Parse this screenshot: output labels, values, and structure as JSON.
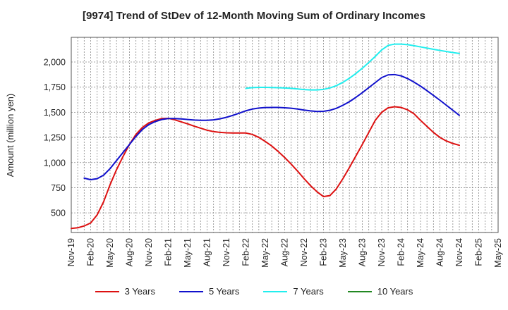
{
  "chart_data": {
    "type": "line",
    "title": "[9974]  Trend of StDev of 12-Month Moving Sum of Ordinary Incomes",
    "xlabel": "",
    "ylabel": "Amount (million yen)",
    "x_ticks": [
      "Nov-19",
      "Feb-20",
      "May-20",
      "Aug-20",
      "Nov-20",
      "Feb-21",
      "May-21",
      "Aug-21",
      "Nov-21",
      "Feb-22",
      "May-22",
      "Aug-22",
      "Nov-22",
      "Feb-23",
      "May-23",
      "Aug-23",
      "Nov-23",
      "Feb-24",
      "May-24",
      "Aug-24",
      "Nov-24",
      "Feb-25",
      "May-25"
    ],
    "y_ticks": [
      500,
      750,
      1000,
      1250,
      1500,
      1750,
      2000
    ],
    "y_tick_labels": [
      "500",
      "750",
      "1,000",
      "1,250",
      "1,500",
      "1,750",
      "2,000"
    ],
    "ylim": [
      305,
      2245
    ],
    "x_range": [
      "Nov-19",
      "May-25"
    ],
    "grid": true,
    "legend_position": "bottom",
    "series": [
      {
        "name": "3 Years",
        "color": "#dd1111",
        "points": [
          [
            "Nov-19",
            345
          ],
          [
            "Dec-19",
            352
          ],
          [
            "Jan-20",
            370
          ],
          [
            "Feb-20",
            400
          ],
          [
            "Mar-20",
            480
          ],
          [
            "Apr-20",
            610
          ],
          [
            "May-20",
            780
          ],
          [
            "Jun-20",
            930
          ],
          [
            "Jul-20",
            1060
          ],
          [
            "Aug-20",
            1180
          ],
          [
            "Sep-20",
            1280
          ],
          [
            "Oct-20",
            1350
          ],
          [
            "Nov-20",
            1395
          ],
          [
            "Dec-20",
            1420
          ],
          [
            "Jan-21",
            1438
          ],
          [
            "Feb-21",
            1440
          ],
          [
            "Mar-21",
            1425
          ],
          [
            "Apr-21",
            1405
          ],
          [
            "May-21",
            1385
          ],
          [
            "Jun-21",
            1362
          ],
          [
            "Jul-21",
            1342
          ],
          [
            "Aug-21",
            1322
          ],
          [
            "Sep-21",
            1308
          ],
          [
            "Oct-21",
            1300
          ],
          [
            "Nov-21",
            1296
          ],
          [
            "Dec-21",
            1294
          ],
          [
            "Jan-22",
            1294
          ],
          [
            "Feb-22",
            1294
          ],
          [
            "Mar-22",
            1280
          ],
          [
            "Apr-22",
            1250
          ],
          [
            "May-22",
            1210
          ],
          [
            "Jun-22",
            1165
          ],
          [
            "Jul-22",
            1110
          ],
          [
            "Aug-22",
            1050
          ],
          [
            "Sep-22",
            985
          ],
          [
            "Oct-22",
            915
          ],
          [
            "Nov-22",
            840
          ],
          [
            "Dec-22",
            770
          ],
          [
            "Jan-23",
            710
          ],
          [
            "Feb-23",
            662
          ],
          [
            "Mar-23",
            672
          ],
          [
            "Apr-23",
            740
          ],
          [
            "May-23",
            840
          ],
          [
            "Jun-23",
            950
          ],
          [
            "Jul-23",
            1065
          ],
          [
            "Aug-23",
            1180
          ],
          [
            "Sep-23",
            1300
          ],
          [
            "Oct-23",
            1420
          ],
          [
            "Nov-23",
            1500
          ],
          [
            "Dec-23",
            1545
          ],
          [
            "Jan-24",
            1555
          ],
          [
            "Feb-24",
            1548
          ],
          [
            "Mar-24",
            1525
          ],
          [
            "Apr-24",
            1485
          ],
          [
            "May-24",
            1420
          ],
          [
            "Jun-24",
            1360
          ],
          [
            "Jul-24",
            1300
          ],
          [
            "Aug-24",
            1250
          ],
          [
            "Sep-24",
            1215
          ],
          [
            "Oct-24",
            1190
          ],
          [
            "Nov-24",
            1172
          ]
        ]
      },
      {
        "name": "5 Years",
        "color": "#1111cc",
        "points": [
          [
            "Jan-20",
            845
          ],
          [
            "Feb-20",
            830
          ],
          [
            "Mar-20",
            840
          ],
          [
            "Apr-20",
            875
          ],
          [
            "May-20",
            940
          ],
          [
            "Jun-20",
            1020
          ],
          [
            "Jul-20",
            1100
          ],
          [
            "Aug-20",
            1180
          ],
          [
            "Sep-20",
            1260
          ],
          [
            "Oct-20",
            1330
          ],
          [
            "Nov-20",
            1378
          ],
          [
            "Dec-20",
            1408
          ],
          [
            "Jan-21",
            1428
          ],
          [
            "Feb-21",
            1438
          ],
          [
            "Mar-21",
            1438
          ],
          [
            "Apr-21",
            1434
          ],
          [
            "May-21",
            1428
          ],
          [
            "Jun-21",
            1423
          ],
          [
            "Jul-21",
            1420
          ],
          [
            "Aug-21",
            1420
          ],
          [
            "Sep-21",
            1425
          ],
          [
            "Oct-21",
            1435
          ],
          [
            "Nov-21",
            1450
          ],
          [
            "Dec-21",
            1470
          ],
          [
            "Jan-22",
            1492
          ],
          [
            "Feb-22",
            1515
          ],
          [
            "Mar-22",
            1532
          ],
          [
            "Apr-22",
            1542
          ],
          [
            "May-22",
            1547
          ],
          [
            "Jun-22",
            1548
          ],
          [
            "Jul-22",
            1548
          ],
          [
            "Aug-22",
            1545
          ],
          [
            "Sep-22",
            1540
          ],
          [
            "Oct-22",
            1532
          ],
          [
            "Nov-22",
            1522
          ],
          [
            "Dec-22",
            1514
          ],
          [
            "Jan-23",
            1508
          ],
          [
            "Feb-23",
            1510
          ],
          [
            "Mar-23",
            1520
          ],
          [
            "Apr-23",
            1540
          ],
          [
            "May-23",
            1570
          ],
          [
            "Jun-23",
            1605
          ],
          [
            "Jul-23",
            1648
          ],
          [
            "Aug-23",
            1695
          ],
          [
            "Sep-23",
            1745
          ],
          [
            "Oct-23",
            1795
          ],
          [
            "Nov-23",
            1845
          ],
          [
            "Dec-23",
            1872
          ],
          [
            "Jan-24",
            1875
          ],
          [
            "Feb-24",
            1862
          ],
          [
            "Mar-24",
            1835
          ],
          [
            "Apr-24",
            1800
          ],
          [
            "May-24",
            1760
          ],
          [
            "Jun-24",
            1715
          ],
          [
            "Jul-24",
            1668
          ],
          [
            "Aug-24",
            1620
          ],
          [
            "Sep-24",
            1570
          ],
          [
            "Oct-24",
            1520
          ],
          [
            "Nov-24",
            1470
          ]
        ]
      },
      {
        "name": "7 Years",
        "color": "#22eeee",
        "points": [
          [
            "Feb-22",
            1738
          ],
          [
            "Mar-22",
            1745
          ],
          [
            "Apr-22",
            1748
          ],
          [
            "May-22",
            1748
          ],
          [
            "Jun-22",
            1746
          ],
          [
            "Jul-22",
            1744
          ],
          [
            "Aug-22",
            1742
          ],
          [
            "Sep-22",
            1738
          ],
          [
            "Oct-22",
            1732
          ],
          [
            "Nov-22",
            1726
          ],
          [
            "Dec-22",
            1722
          ],
          [
            "Jan-23",
            1722
          ],
          [
            "Feb-23",
            1728
          ],
          [
            "Mar-23",
            1742
          ],
          [
            "Apr-23",
            1765
          ],
          [
            "May-23",
            1798
          ],
          [
            "Jun-23",
            1838
          ],
          [
            "Jul-23",
            1885
          ],
          [
            "Aug-23",
            1938
          ],
          [
            "Sep-23",
            1995
          ],
          [
            "Oct-23",
            2055
          ],
          [
            "Nov-23",
            2120
          ],
          [
            "Dec-23",
            2165
          ],
          [
            "Jan-24",
            2178
          ],
          [
            "Feb-24",
            2178
          ],
          [
            "Mar-24",
            2172
          ],
          [
            "Apr-24",
            2162
          ],
          [
            "May-24",
            2150
          ],
          [
            "Jun-24",
            2138
          ],
          [
            "Jul-24",
            2126
          ],
          [
            "Aug-24",
            2115
          ],
          [
            "Sep-24",
            2104
          ],
          [
            "Oct-24",
            2094
          ],
          [
            "Nov-24",
            2085
          ]
        ]
      },
      {
        "name": "10 Years",
        "color": "#228822",
        "points": []
      }
    ]
  }
}
